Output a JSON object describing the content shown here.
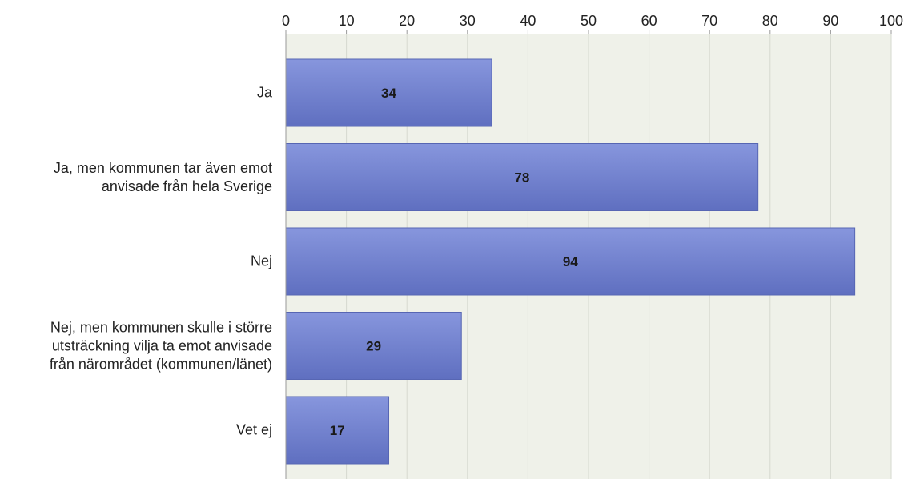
{
  "chart_data": {
    "type": "bar",
    "orientation": "horizontal",
    "categories": [
      "Ja",
      "Ja, men kommunen tar även emot\nanvisade från hela Sverige",
      "Nej",
      "Nej, men kommunen skulle i större\nutsträckning vilja ta emot anvisade\nfrån närområdet (kommunen/länet)",
      "Vet ej"
    ],
    "values": [
      34,
      78,
      94,
      29,
      17
    ],
    "data_labels": [
      "34",
      "78",
      "94",
      "29",
      "17"
    ],
    "xlim": [
      0,
      100
    ],
    "x_ticks": [
      "0",
      "10",
      "20",
      "30",
      "40",
      "50",
      "60",
      "70",
      "80",
      "90",
      "100"
    ],
    "axis_position": "top",
    "grid": true,
    "legend": "none",
    "title": "",
    "xlabel": "",
    "ylabel": ""
  },
  "colors": {
    "bar_light": "#8796dd",
    "bar_dark": "#5f6fc0",
    "plot_background": "#eff1e9",
    "gridline": "#d6d9cf",
    "axis": "#999999",
    "text": "#222222"
  }
}
